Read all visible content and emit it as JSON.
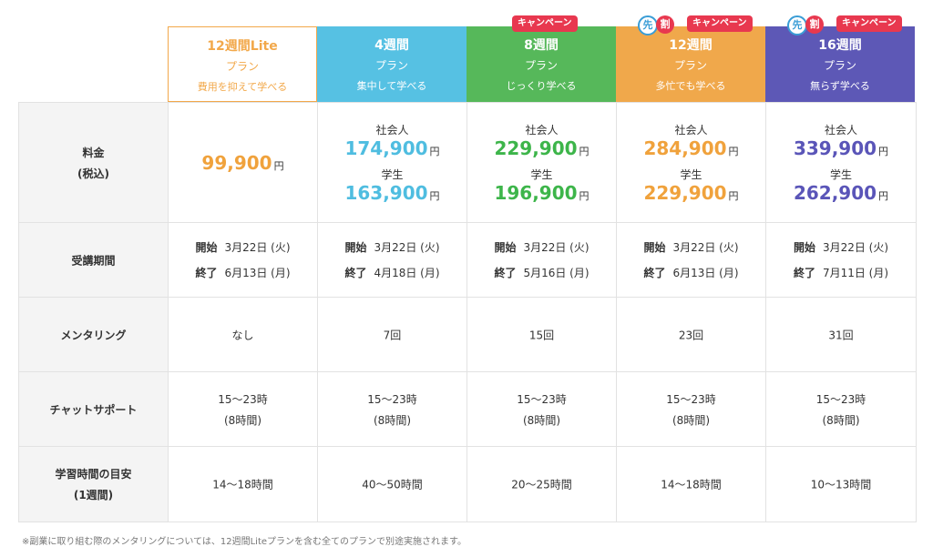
{
  "plans": [
    {
      "name": "12週間Lite",
      "sub": "プラン",
      "desc": "費用を抑えて学べる",
      "campaign": "",
      "sen": false,
      "bg": "#ffffff",
      "accent": "#f2a84a",
      "price_single": "99,900",
      "price_social": "",
      "price_student": "",
      "start": "3月22日 (火)",
      "end": "6月13日 (月)",
      "mentoring": "なし",
      "chat_time": "15〜23時",
      "chat_hours": "(8時間)",
      "study": "14〜18時間"
    },
    {
      "name": "4週間",
      "sub": "プラン",
      "desc": "集中して学べる",
      "campaign": "",
      "sen": false,
      "bg": "#56c1e3",
      "accent": "#4fbde0",
      "price_single": "",
      "price_social": "174,900",
      "price_student": "163,900",
      "start": "3月22日 (火)",
      "end": "4月18日 (月)",
      "mentoring": "7回",
      "chat_time": "15〜23時",
      "chat_hours": "(8時間)",
      "study": "40〜50時間"
    },
    {
      "name": "8週間",
      "sub": "プラン",
      "desc": "じっくり学べる",
      "campaign": "キャンペーン",
      "sen": false,
      "bg": "#56b85a",
      "accent": "#3db54a",
      "price_single": "",
      "price_social": "229,900",
      "price_student": "196,900",
      "start": "3月22日 (火)",
      "end": "5月16日 (月)",
      "mentoring": "15回",
      "chat_time": "15〜23時",
      "chat_hours": "(8時間)",
      "study": "20〜25時間"
    },
    {
      "name": "12週間",
      "sub": "プラン",
      "desc": "多忙でも学べる",
      "campaign": "キャンペーン",
      "sen": true,
      "bg": "#f0a84b",
      "accent": "#f0a23c",
      "price_single": "",
      "price_social": "284,900",
      "price_student": "229,900",
      "start": "3月22日 (火)",
      "end": "6月13日 (月)",
      "mentoring": "23回",
      "chat_time": "15〜23時",
      "chat_hours": "(8時間)",
      "study": "14〜18時間"
    },
    {
      "name": "16週間",
      "sub": "プラン",
      "desc": "無らず学べる",
      "campaign": "キャンペーン",
      "sen": true,
      "bg": "#5d58b6",
      "accent": "#5a55b8",
      "price_single": "",
      "price_social": "339,900",
      "price_student": "262,900",
      "start": "3月22日 (火)",
      "end": "7月11日 (月)",
      "mentoring": "31回",
      "chat_time": "15〜23時",
      "chat_hours": "(8時間)",
      "study": "10〜13時間"
    }
  ],
  "labels": {
    "price": "料金",
    "price_sub": "(税込)",
    "period": "受講期間",
    "mentoring": "メンタリング",
    "chat": "チャットサポート",
    "study": "学習時間の目安",
    "study_sub": "(1週間)"
  },
  "words": {
    "yen": "円",
    "social": "社会人",
    "student": "学生",
    "start": "開始",
    "end": "終了",
    "sen1": "先",
    "sen2": "割"
  },
  "note": "※副業に取り組む際のメンタリングについては、12週間Liteプランを含む全てのプランで別途実施されます。"
}
